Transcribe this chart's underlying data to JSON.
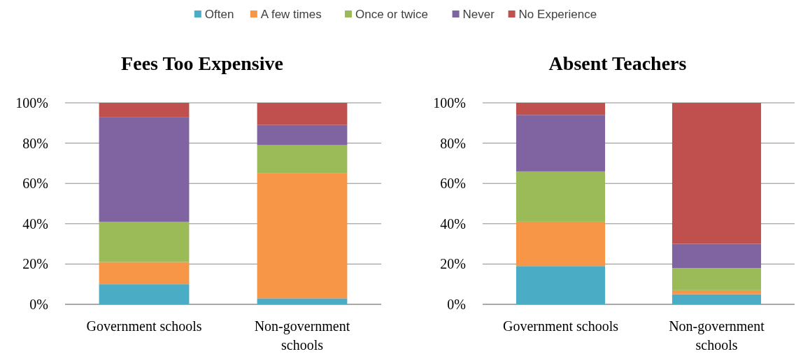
{
  "chart_data": [
    {
      "type": "bar",
      "title": "Fees Too Expensive",
      "stacked": true,
      "legend": "top",
      "grid": "y",
      "categories": [
        "Government schools",
        "Non-government schools"
      ],
      "ylim": [
        0,
        100
      ],
      "yticks": [
        {
          "value": 0,
          "label": "0%"
        },
        {
          "value": 20,
          "label": "20%"
        },
        {
          "value": 40,
          "label": "40%"
        },
        {
          "value": 60,
          "label": "60%"
        },
        {
          "value": 80,
          "label": "80%"
        },
        {
          "value": 100,
          "label": "100%"
        }
      ],
      "series": [
        {
          "name": "Often",
          "color": "#4bacc6",
          "values": [
            10,
            3
          ]
        },
        {
          "name": "A few times",
          "color": "#f79646",
          "values": [
            11,
            62
          ]
        },
        {
          "name": "Once or twice",
          "color": "#9bbb59",
          "values": [
            20,
            14
          ]
        },
        {
          "name": "Never",
          "color": "#8064a2",
          "values": [
            52,
            10
          ]
        },
        {
          "name": "No Experience",
          "color": "#c0504d",
          "values": [
            7,
            11
          ]
        }
      ]
    },
    {
      "type": "bar",
      "title": "Absent Teachers",
      "stacked": true,
      "grid": "y",
      "categories": [
        "Government schools",
        "Non-government schools"
      ],
      "ylim": [
        0,
        100
      ],
      "yticks": [
        {
          "value": 0,
          "label": "0%"
        },
        {
          "value": 20,
          "label": "20%"
        },
        {
          "value": 40,
          "label": "40%"
        },
        {
          "value": 60,
          "label": "60%"
        },
        {
          "value": 80,
          "label": "80%"
        },
        {
          "value": 100,
          "label": "100%"
        }
      ],
      "series": [
        {
          "color": "#4bacc6",
          "values": [
            19,
            5
          ]
        },
        {
          "color": "#f79646",
          "values": [
            22,
            2
          ]
        },
        {
          "color": "#9bbb59",
          "values": [
            25,
            11
          ]
        },
        {
          "color": "#8064a2",
          "values": [
            28,
            12
          ]
        },
        {
          "color": "#c0504d",
          "values": [
            6,
            70
          ]
        }
      ]
    }
  ]
}
